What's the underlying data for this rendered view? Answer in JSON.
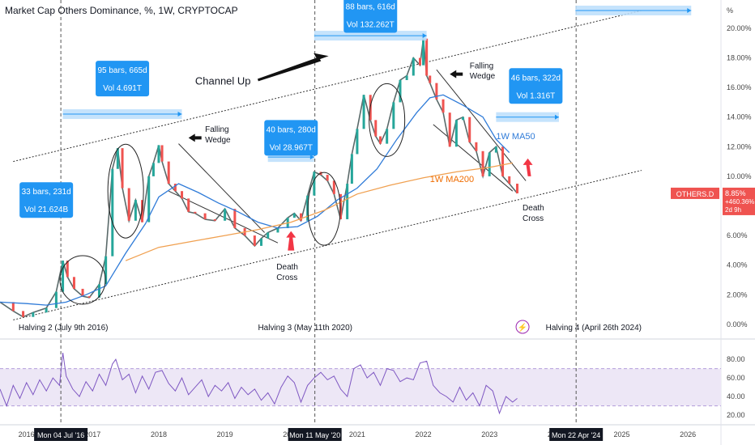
{
  "title": "Market Cap Others Dominance, %, 1W, CRYPTOCAP",
  "colors": {
    "up": "#26a69a",
    "down": "#ef5350",
    "ma50": "#2f7bd8",
    "ma200": "#f0a050",
    "rsi": "#7e57c2",
    "rsi_band": "#ede7f6",
    "box_fill": "#bbdefb",
    "box_stroke": "#2196f3",
    "label_bg": "#2196f3",
    "price_tag": "#ef5350",
    "arrow_red": "#f23645"
  },
  "price_tag": {
    "symbol": "OTHERS.D",
    "value": "8.85%",
    "change": "+460.36%",
    "countdown": "2d 9h"
  },
  "annotations": {
    "channel_up": "Channel Up",
    "falling_wedge": [
      "Falling",
      "Wedge"
    ],
    "death_cross": [
      "Death",
      "Cross"
    ],
    "ma50_label": "1W MA50",
    "ma200_label": "1W MA200",
    "halvings": [
      "Halving 2 (July 9th 2016)",
      "Halving 3 (May 11th 2020)",
      "Halving 4 (April 26th 2024)"
    ],
    "measures": [
      {
        "bars": "33 bars, 231d",
        "vol": "Vol 21.624B"
      },
      {
        "bars": "95 bars, 665d",
        "vol": "Vol 4.691T"
      },
      {
        "bars": "40 bars, 280d",
        "vol": "Vol 28.967T"
      },
      {
        "bars": "88 bars, 616d",
        "vol": "Vol 132.262T"
      },
      {
        "bars": "46 bars, 322d",
        "vol": "Vol 1.316T"
      },
      {
        "bars": "88 bars, 616d",
        "vol": ""
      }
    ],
    "date_tags": [
      "Mon 04 Jul '16",
      "Mon 11 May '20",
      "Mon 22 Apr '24"
    ]
  },
  "chart_data": {
    "type": "line",
    "ylabel": "%",
    "y_ticks": [
      "0.00%",
      "2.00%",
      "4.00%",
      "6.00%",
      "8.00%",
      "10.00%",
      "12.00%",
      "14.00%",
      "16.00%",
      "18.00%",
      "20.00%"
    ],
    "ylim": [
      -0.5,
      21.8
    ],
    "x_ticks": [
      "2016",
      "2017",
      "2018",
      "2019",
      "2020",
      "2021",
      "2022",
      "2023",
      "2024",
      "2025",
      "2026"
    ],
    "xlim": [
      2015.6,
      2026.5
    ],
    "series": [
      {
        "x": [
          2015.6,
          2015.8,
          2015.95,
          2016.1,
          2016.3,
          2016.45,
          2016.55,
          2016.62,
          2016.72,
          2016.85,
          2016.95,
          2017.1,
          2017.2,
          2017.3,
          2017.38,
          2017.45,
          2017.55,
          2017.65,
          2017.75,
          2017.85,
          2017.92,
          2018.0,
          2018.05,
          2018.15,
          2018.25,
          2018.35,
          2018.45,
          2018.55,
          2018.7,
          2018.85,
          2019.0,
          2019.15,
          2019.3,
          2019.45,
          2019.55,
          2019.65,
          2019.8,
          2019.95,
          2020.05,
          2020.15,
          2020.25,
          2020.35,
          2020.45,
          2020.55,
          2020.65,
          2020.75,
          2020.85,
          2020.92,
          2021.0,
          2021.1,
          2021.2,
          2021.28,
          2021.35,
          2021.45,
          2021.55,
          2021.65,
          2021.75,
          2021.85,
          2021.95,
          2022.0,
          2022.05,
          2022.1,
          2022.2,
          2022.3,
          2022.4,
          2022.5,
          2022.6,
          2022.7,
          2022.8,
          2022.9,
          2023.0,
          2023.1,
          2023.2,
          2023.3,
          2023.42
        ],
        "y": [
          1.5,
          0.9,
          0.5,
          0.8,
          1.1,
          2.2,
          4.3,
          3.2,
          2.4,
          1.9,
          1.8,
          2.7,
          4.6,
          10.5,
          11.9,
          9.2,
          7.0,
          8.4,
          6.9,
          10.0,
          10.9,
          12.1,
          11.0,
          9.5,
          9.0,
          8.5,
          7.6,
          7.5,
          7.1,
          7.0,
          7.8,
          6.5,
          6.0,
          5.3,
          5.8,
          6.2,
          6.5,
          7.2,
          7.5,
          7.0,
          8.7,
          10.3,
          10.1,
          9.7,
          8.8,
          7.1,
          9.5,
          11.5,
          13.2,
          15.5,
          13.8,
          12.7,
          12.2,
          13.2,
          15.0,
          16.5,
          16.8,
          18.0,
          17.5,
          19.3,
          16.8,
          16.3,
          15.2,
          14.3,
          12.0,
          13.8,
          14.0,
          12.3,
          11.7,
          10.0,
          11.6,
          12.0,
          10.0,
          9.5,
          8.85
        ]
      },
      {
        "name": "1W MA50",
        "x": [
          2015.6,
          2016.0,
          2016.3,
          2016.6,
          2016.9,
          2017.2,
          2017.5,
          2017.8,
          2018.0,
          2018.3,
          2018.6,
          2018.9,
          2019.2,
          2019.5,
          2019.8,
          2020.1,
          2020.4,
          2020.7,
          2021.0,
          2021.3,
          2021.6,
          2021.9,
          2022.1,
          2022.3,
          2022.6,
          2022.9,
          2023.1,
          2023.3
        ],
        "y": [
          1.5,
          1.4,
          1.3,
          1.5,
          2.0,
          2.6,
          4.8,
          6.8,
          8.6,
          9.5,
          8.9,
          8.2,
          7.6,
          6.9,
          6.5,
          6.6,
          7.3,
          8.4,
          9.2,
          10.5,
          12.5,
          14.3,
          15.3,
          15.5,
          14.8,
          14.0,
          12.5,
          11.6
        ]
      },
      {
        "name": "1W MA200",
        "x": [
          2017.5,
          2018.0,
          2018.5,
          2019.0,
          2019.5,
          2020.0,
          2020.5,
          2021.0,
          2021.5,
          2022.0,
          2022.5,
          2023.0,
          2023.35
        ],
        "y": [
          4.3,
          5.2,
          5.6,
          6.0,
          6.4,
          6.9,
          7.7,
          8.8,
          9.4,
          9.9,
          10.3,
          10.6,
          10.9
        ]
      }
    ],
    "rsi": {
      "name": "RSI",
      "y_ticks": [
        "20.00",
        "40.00",
        "60.00",
        "80.00"
      ],
      "ylim": [
        14,
        94
      ],
      "band": [
        30,
        70
      ],
      "x": [
        2015.6,
        2015.7,
        2015.8,
        2015.9,
        2016.0,
        2016.1,
        2016.2,
        2016.3,
        2016.4,
        2016.5,
        2016.55,
        2016.6,
        2016.7,
        2016.8,
        2016.9,
        2017.0,
        2017.1,
        2017.2,
        2017.3,
        2017.35,
        2017.45,
        2017.55,
        2017.65,
        2017.75,
        2017.85,
        2017.95,
        2018.05,
        2018.15,
        2018.25,
        2018.35,
        2018.45,
        2018.55,
        2018.65,
        2018.75,
        2018.85,
        2018.95,
        2019.05,
        2019.15,
        2019.25,
        2019.35,
        2019.45,
        2019.55,
        2019.65,
        2019.75,
        2019.85,
        2019.95,
        2020.05,
        2020.15,
        2020.25,
        2020.35,
        2020.45,
        2020.55,
        2020.65,
        2020.75,
        2020.85,
        2020.95,
        2021.05,
        2021.15,
        2021.25,
        2021.35,
        2021.45,
        2021.55,
        2021.65,
        2021.75,
        2021.85,
        2021.95,
        2022.05,
        2022.15,
        2022.25,
        2022.35,
        2022.45,
        2022.55,
        2022.65,
        2022.75,
        2022.85,
        2022.95,
        2023.05,
        2023.15,
        2023.25,
        2023.35,
        2023.42
      ],
      "y": [
        48,
        30,
        52,
        38,
        55,
        42,
        58,
        46,
        60,
        52,
        87,
        62,
        48,
        40,
        56,
        46,
        64,
        52,
        75,
        80,
        58,
        64,
        44,
        62,
        48,
        66,
        68,
        54,
        46,
        60,
        42,
        50,
        58,
        40,
        52,
        46,
        55,
        38,
        50,
        42,
        48,
        36,
        44,
        32,
        50,
        62,
        55,
        34,
        52,
        60,
        66,
        58,
        62,
        48,
        40,
        70,
        74,
        60,
        66,
        52,
        70,
        68,
        56,
        60,
        58,
        76,
        78,
        52,
        44,
        40,
        34,
        50,
        36,
        44,
        30,
        52,
        46,
        22,
        40,
        34,
        38
      ]
    }
  }
}
